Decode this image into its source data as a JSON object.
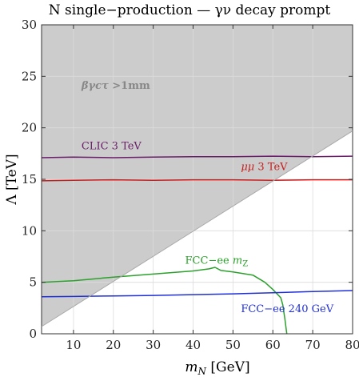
{
  "chart_data": {
    "type": "line",
    "title": "N single−production — γν decay prompt",
    "xlabel": "m_N [GeV]",
    "ylabel": "Λ [TeV]",
    "xlim": [
      2,
      80
    ],
    "ylim": [
      0,
      30
    ],
    "xticks": [
      10,
      20,
      30,
      40,
      50,
      60,
      70,
      80
    ],
    "yticks": [
      0,
      5,
      10,
      15,
      20,
      25,
      30
    ],
    "grid": true,
    "legend": "none",
    "shaded_region": {
      "label": "βγcτ >1mm",
      "color": "#cccccc",
      "label_color": "#888888",
      "label_at": [
        12,
        23.8
      ],
      "boundary": [
        [
          2,
          0.7
        ],
        [
          80,
          19.7
        ]
      ]
    },
    "series": [
      {
        "name": "CLIC 3 TeV",
        "color": "#6a1b6a",
        "label_at": [
          12,
          17.9
        ],
        "x": [
          2,
          10,
          20,
          30,
          40,
          50,
          60,
          70,
          80
        ],
        "y": [
          17.1,
          17.15,
          17.1,
          17.15,
          17.2,
          17.2,
          17.25,
          17.2,
          17.25
        ]
      },
      {
        "name": "μμ 3 TeV",
        "color": "#c81e1e",
        "label_at": [
          52,
          15.9
        ],
        "x": [
          2,
          10,
          20,
          30,
          40,
          50,
          60,
          70,
          80
        ],
        "y": [
          14.85,
          14.9,
          14.95,
          14.9,
          14.95,
          14.95,
          14.9,
          14.95,
          14.95
        ]
      },
      {
        "name": "FCC−ee m_Z",
        "color": "#2ca02c",
        "label_at": [
          38,
          6.8
        ],
        "x": [
          2,
          10,
          20,
          30,
          40,
          44,
          45.5,
          47,
          50,
          55,
          58,
          60,
          61,
          62,
          62.5,
          63,
          63.5
        ],
        "y": [
          5.0,
          5.15,
          5.5,
          5.8,
          6.1,
          6.3,
          6.45,
          6.15,
          6.0,
          5.7,
          5.0,
          4.3,
          3.9,
          3.5,
          2.8,
          1.5,
          0
        ]
      },
      {
        "name": "FCC−ee 240 GeV",
        "color": "#1f2fd6",
        "label_at": [
          52,
          2.1
        ],
        "x": [
          2,
          10,
          20,
          30,
          40,
          50,
          60,
          70,
          80
        ],
        "y": [
          3.6,
          3.62,
          3.68,
          3.72,
          3.8,
          3.88,
          3.98,
          4.1,
          4.2
        ]
      }
    ]
  }
}
